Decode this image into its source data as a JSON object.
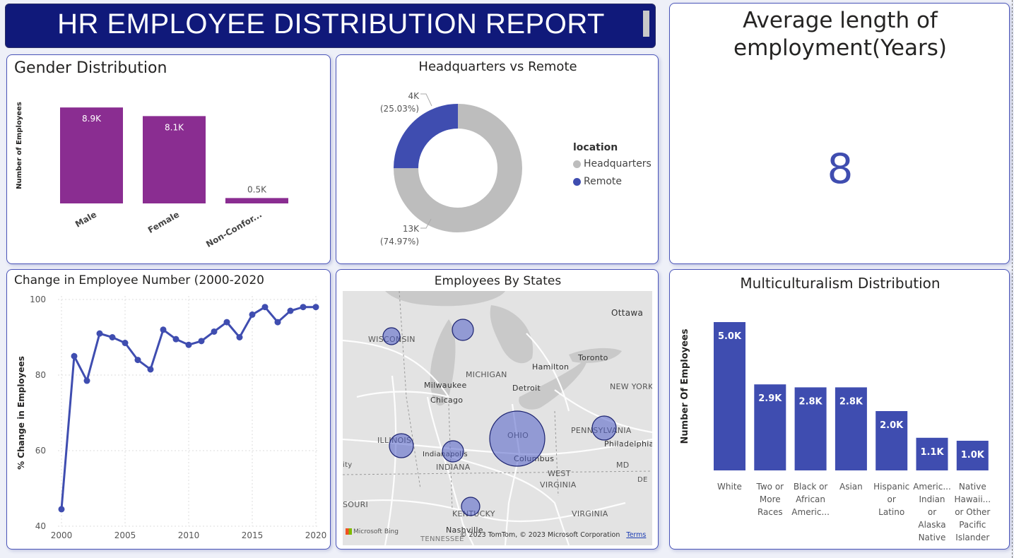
{
  "header": {
    "title": "HR EMPLOYEE DISTRIBUTION REPORT"
  },
  "gender": {
    "title": "Gender Distribution",
    "chart_data": {
      "type": "bar",
      "categories": [
        "Male",
        "Female",
        "Non-Confor..."
      ],
      "values": [
        8.9,
        8.1,
        0.5
      ],
      "data_labels": [
        "8.9K",
        "8.1K",
        "0.5K"
      ],
      "ylabel": "Number of Employees",
      "ylim": [
        0,
        9.5
      ],
      "color": "#8a2d91"
    }
  },
  "location": {
    "title": "Headquarters vs Remote",
    "legend_title": "location",
    "chart_data": {
      "type": "pie",
      "categories": [
        "Headquarters",
        "Remote"
      ],
      "values": [
        13,
        4
      ],
      "percents": [
        74.97,
        25.03
      ],
      "value_labels": [
        "13K",
        "4K"
      ],
      "percent_labels": [
        "(74.97%)",
        "(25.03%)"
      ],
      "colors": [
        "#bdbdbd",
        "#3f4db0"
      ]
    }
  },
  "average": {
    "title_line1": "Average length of",
    "title_line2": "employment(Years)",
    "value": "8"
  },
  "trend": {
    "title": "Change in Employee Number (2000-2020",
    "chart_data": {
      "type": "line",
      "x": [
        2000,
        2001,
        2002,
        2003,
        2004,
        2005,
        2006,
        2007,
        2008,
        2009,
        2010,
        2011,
        2012,
        2013,
        2014,
        2015,
        2016,
        2017,
        2018,
        2019,
        2020
      ],
      "values": [
        44.5,
        85,
        78.5,
        91,
        90,
        88.5,
        84,
        81.5,
        92,
        89.5,
        88,
        89,
        91.5,
        94,
        90,
        96,
        98,
        94,
        97,
        98,
        98
      ],
      "ylabel": "% Change in Employees",
      "ylim": [
        40,
        100
      ],
      "yticks": [
        "40",
        "60",
        "80",
        "100"
      ],
      "xticks": [
        "2000",
        "2005",
        "2010",
        "2015",
        "2020"
      ],
      "color": "#3f4db0"
    }
  },
  "map": {
    "title": "Employees By States",
    "labels": [
      "Ottawa",
      "WISCONSIN",
      "Toronto",
      "MICHIGAN",
      "Hamilton",
      "Milwaukee",
      "Detroit",
      "NEW YORK",
      "Chicago",
      "PENNSYLVANIA",
      "ILLINOIS",
      "OHIO",
      "Philadelphia",
      "Indianapolis",
      "INDIANA",
      "Columbus",
      "MD",
      "WEST",
      "VIRGINIA",
      "DE",
      "ity",
      "SOURI",
      "VIRGINIA",
      "KENTUCKY",
      "Nashville",
      "TENNESSEE"
    ],
    "attribution": "© 2023 TomTom, © 2023 Microsoft Corporation",
    "terms": "Terms",
    "bing": "Microsoft Bing"
  },
  "multi": {
    "title": "Multiculturalism Distribution",
    "chart_data": {
      "type": "bar",
      "categories": [
        [
          "White"
        ],
        [
          "Two or",
          "More",
          "Races"
        ],
        [
          "Black or",
          "African",
          "Americ..."
        ],
        [
          "Asian"
        ],
        [
          "Hispanic",
          "or",
          "Latino"
        ],
        [
          "Americ...",
          "Indian",
          "or",
          "Alaska",
          "Native"
        ],
        [
          "Native",
          "Hawaii...",
          "or Other",
          "Pacific",
          "Islander"
        ]
      ],
      "values": [
        5.0,
        2.9,
        2.8,
        2.8,
        2.0,
        1.1,
        1.0
      ],
      "data_labels": [
        "5.0K",
        "2.9K",
        "2.8K",
        "2.8K",
        "2.0K",
        "1.1K",
        "1.0K"
      ],
      "ylabel": "Number Of Employees",
      "ylim": [
        0,
        5.0
      ],
      "color": "#3f4db0"
    }
  }
}
